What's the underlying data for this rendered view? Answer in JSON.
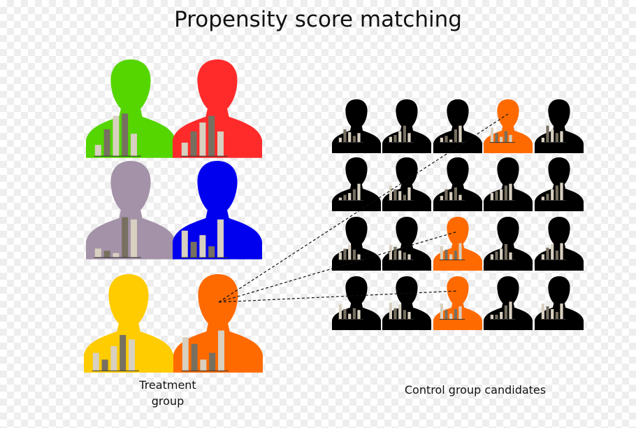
{
  "title": "Propensity score matching",
  "treatment_label_line1": "Treatment",
  "treatment_label_line2": "group",
  "control_label": "Control group candidates",
  "colors": {
    "black": "#000000",
    "green": "#55d600",
    "red": "#ff2b2b",
    "mauve": "#a492a8",
    "blue": "#0000ee",
    "yellow": "#ffcc00",
    "orange": "#ff6a00",
    "bar_light": "#d8d0c0",
    "bar_dark": "#777060"
  },
  "icons": {
    "person": "person-silhouette-icon",
    "attributes": "attribute-bar-chart-icon"
  },
  "treatment_group": [
    {
      "name": "treatment-person-green",
      "color": "green",
      "bars": [
        0.25,
        0.6,
        0.9,
        0.95,
        0.5
      ]
    },
    {
      "name": "treatment-person-red",
      "color": "red",
      "bars": [
        0.3,
        0.55,
        0.75,
        0.9,
        0.55
      ]
    },
    {
      "name": "treatment-person-mauve",
      "color": "mauve",
      "bars": [
        0.2,
        0.15,
        0.1,
        0.9,
        0.85
      ]
    },
    {
      "name": "treatment-person-blue",
      "color": "blue",
      "bars": [
        0.6,
        0.35,
        0.5,
        0.25,
        0.85
      ]
    },
    {
      "name": "treatment-person-yellow",
      "color": "yellow",
      "bars": [
        0.4,
        0.25,
        0.55,
        0.8,
        0.7
      ]
    },
    {
      "name": "treatment-person-orange",
      "color": "orange",
      "bars": [
        0.75,
        0.6,
        0.25,
        0.4,
        0.9
      ]
    }
  ],
  "control_group": [
    [
      {
        "color": "black",
        "bars": [
          0.25,
          0.7,
          0.55,
          0.35,
          0.5
        ]
      },
      {
        "color": "black",
        "bars": [
          0.3,
          0.4,
          0.6,
          0.9,
          0.5
        ]
      },
      {
        "color": "black",
        "bars": [
          0.25,
          0.35,
          0.15,
          0.7,
          0.9
        ]
      },
      {
        "color": "orange",
        "bars": [
          0.8,
          0.5,
          0.3,
          0.6,
          0.4
        ]
      },
      {
        "color": "black",
        "bars": [
          0.25,
          0.9,
          0.7,
          0.5,
          0.6
        ]
      }
    ],
    [
      {
        "color": "black",
        "bars": [
          0.15,
          0.3,
          0.4,
          0.6,
          0.9
        ]
      },
      {
        "color": "black",
        "bars": [
          0.8,
          0.6,
          0.5,
          0.3,
          0.7
        ]
      },
      {
        "color": "black",
        "bars": [
          0.25,
          0.6,
          0.45,
          0.7,
          0.3
        ]
      },
      {
        "color": "black",
        "bars": [
          0.4,
          0.5,
          0.6,
          0.8,
          0.9
        ]
      },
      {
        "color": "black",
        "bars": [
          0.2,
          0.35,
          0.6,
          0.8,
          0.95
        ]
      }
    ],
    [
      {
        "color": "black",
        "bars": [
          0.4,
          0.6,
          0.8,
          0.55,
          0.3
        ]
      },
      {
        "color": "black",
        "bars": [
          0.8,
          0.7,
          0.5,
          0.4,
          0.3
        ]
      },
      {
        "color": "orange",
        "bars": [
          0.75,
          0.55,
          0.3,
          0.5,
          0.9
        ]
      },
      {
        "color": "black",
        "bars": [
          0.3,
          0.45,
          0.6,
          0.85,
          0.4
        ]
      },
      {
        "color": "black",
        "bars": [
          0.3,
          0.65,
          0.85,
          0.5,
          0.9
        ]
      }
    ],
    [
      {
        "color": "black",
        "bars": [
          0.8,
          0.55,
          0.3,
          0.6,
          0.5
        ]
      },
      {
        "color": "black",
        "bars": [
          0.9,
          0.6,
          0.8,
          0.5,
          0.4
        ]
      },
      {
        "color": "orange",
        "bars": [
          0.85,
          0.5,
          0.3,
          0.55,
          0.7
        ]
      },
      {
        "color": "black",
        "bars": [
          0.25,
          0.25,
          0.4,
          0.75,
          0.95
        ]
      },
      {
        "color": "black",
        "bars": [
          0.85,
          0.7,
          0.55,
          0.4,
          0.85
        ]
      }
    ]
  ],
  "matches": [
    {
      "from": "treatment-person-orange",
      "to_row": 1,
      "to_col": 4
    },
    {
      "from": "treatment-person-orange",
      "to_row": 3,
      "to_col": 3
    },
    {
      "from": "treatment-person-orange",
      "to_row": 4,
      "to_col": 3
    }
  ]
}
